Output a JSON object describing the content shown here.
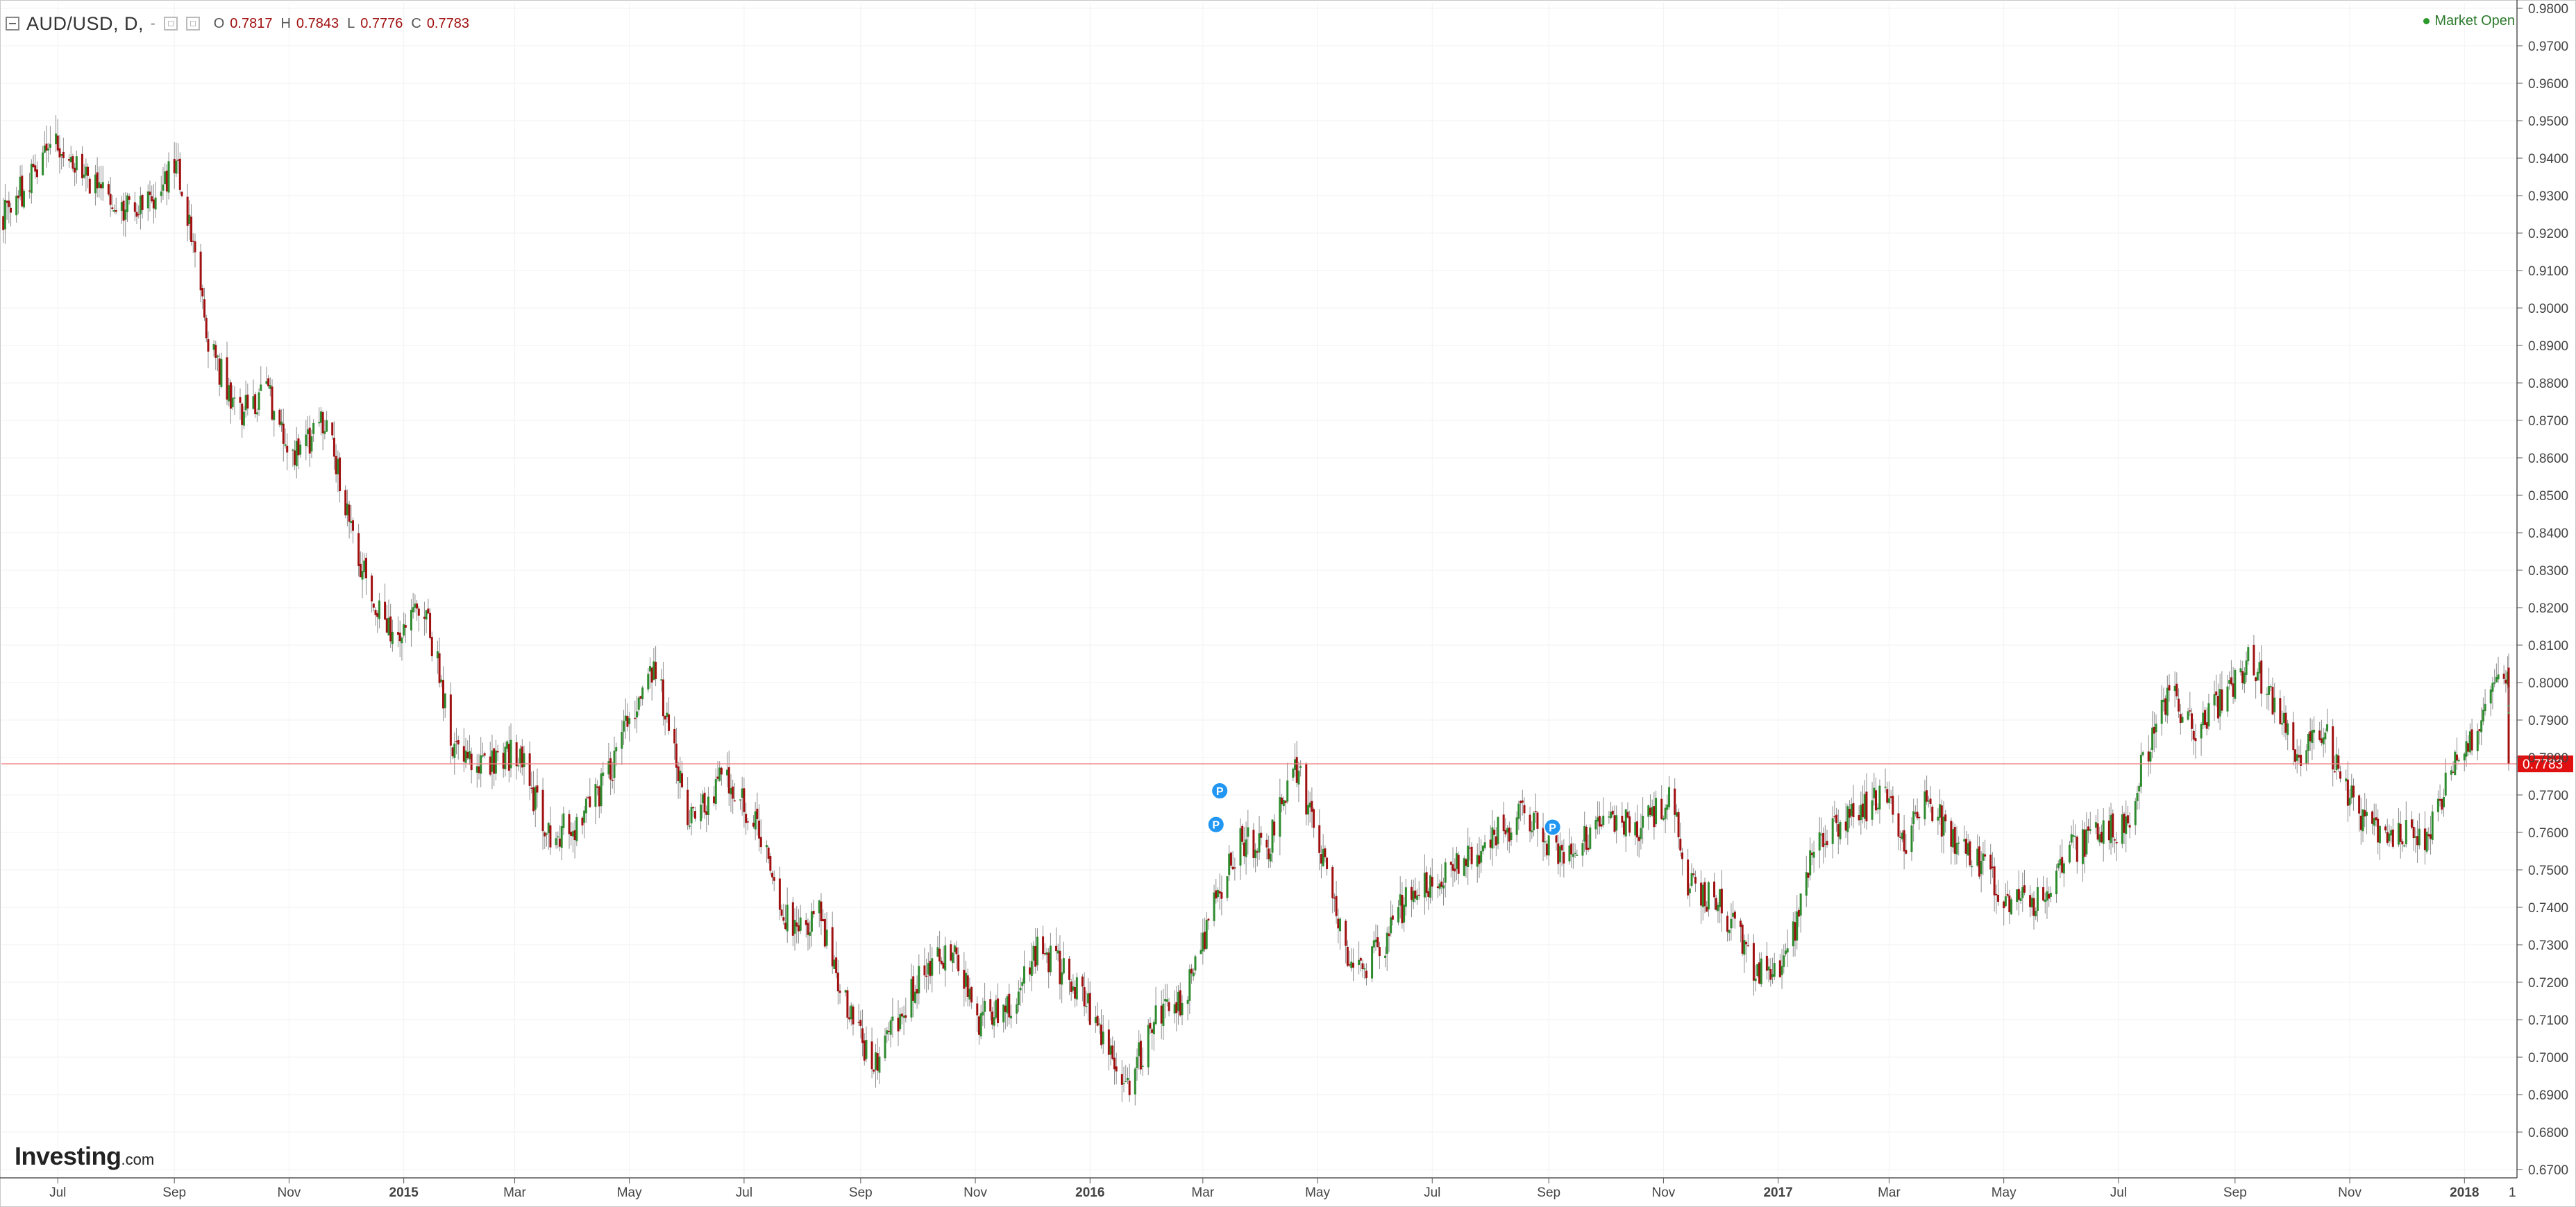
{
  "symbol_text": "AUD/USD, D,",
  "dash_text": "-",
  "ohlc": [
    {
      "key": "O",
      "value": "0.7817"
    },
    {
      "key": "H",
      "value": "0.7843"
    },
    {
      "key": "L",
      "value": "0.7776"
    },
    {
      "key": "C",
      "value": "0.7783"
    }
  ],
  "market_status": "Market Open",
  "brand": {
    "name": "Investing",
    "suffix": ".com"
  },
  "colors": {
    "up": "#2e8b2e",
    "down": "#a01010",
    "wick": "#8c8c8c",
    "last_price_line": "#f08080",
    "last_price_badge": "#e01010",
    "marker": "#2196f3"
  },
  "icons": [
    "collapse-icon",
    "settings-icon",
    "visibility-icon",
    "status-dot-icon"
  ],
  "chart_data": {
    "type": "candlestick",
    "instrument": "AUD/USD",
    "interval": "D",
    "ylim": [
      0.67,
      0.98
    ],
    "y_ticks": [
      "0.6700",
      "0.6800",
      "0.6900",
      "0.7000",
      "0.7100",
      "0.7200",
      "0.7300",
      "0.7400",
      "0.7500",
      "0.7600",
      "0.7700",
      "0.7800",
      "0.7900",
      "0.8000",
      "0.8100",
      "0.8200",
      "0.8300",
      "0.8400",
      "0.8500",
      "0.8600",
      "0.8700",
      "0.8800",
      "0.8900",
      "0.9000",
      "0.9100",
      "0.9200",
      "0.9300",
      "0.9400",
      "0.9500",
      "0.9600",
      "0.9700",
      "0.9800"
    ],
    "x_range": [
      "2014-06-01",
      "2018-01-26"
    ],
    "x_ticks": [
      {
        "label": "Jul",
        "date": "2014-07-01",
        "bold": false
      },
      {
        "label": "Sep",
        "date": "2014-09-01",
        "bold": false
      },
      {
        "label": "Nov",
        "date": "2014-11-01",
        "bold": false
      },
      {
        "label": "2015",
        "date": "2015-01-01",
        "bold": true
      },
      {
        "label": "Mar",
        "date": "2015-03-01",
        "bold": false
      },
      {
        "label": "May",
        "date": "2015-05-01",
        "bold": false
      },
      {
        "label": "Jul",
        "date": "2015-07-01",
        "bold": false
      },
      {
        "label": "Sep",
        "date": "2015-09-01",
        "bold": false
      },
      {
        "label": "Nov",
        "date": "2015-11-01",
        "bold": false
      },
      {
        "label": "2016",
        "date": "2016-01-01",
        "bold": true
      },
      {
        "label": "Mar",
        "date": "2016-03-01",
        "bold": false
      },
      {
        "label": "May",
        "date": "2016-05-01",
        "bold": false
      },
      {
        "label": "Jul",
        "date": "2016-07-01",
        "bold": false
      },
      {
        "label": "Sep",
        "date": "2016-09-01",
        "bold": false
      },
      {
        "label": "Nov",
        "date": "2016-11-01",
        "bold": false
      },
      {
        "label": "2017",
        "date": "2017-01-01",
        "bold": true
      },
      {
        "label": "Mar",
        "date": "2017-03-01",
        "bold": false
      },
      {
        "label": "May",
        "date": "2017-05-01",
        "bold": false
      },
      {
        "label": "Jul",
        "date": "2017-07-01",
        "bold": false
      },
      {
        "label": "Sep",
        "date": "2017-09-01",
        "bold": false
      },
      {
        "label": "Nov",
        "date": "2017-11-01",
        "bold": false
      },
      {
        "label": "2018",
        "date": "2018-01-01",
        "bold": true
      }
    ],
    "extra_axis_label": "1",
    "price_path": [
      {
        "date": "2014-06-01",
        "price": 0.924
      },
      {
        "date": "2014-06-25",
        "price": 0.94
      },
      {
        "date": "2014-07-01",
        "price": 0.945
      },
      {
        "date": "2014-07-15",
        "price": 0.935
      },
      {
        "date": "2014-08-05",
        "price": 0.927
      },
      {
        "date": "2014-08-20",
        "price": 0.93
      },
      {
        "date": "2014-09-03",
        "price": 0.938
      },
      {
        "date": "2014-09-20",
        "price": 0.89
      },
      {
        "date": "2014-10-05",
        "price": 0.872
      },
      {
        "date": "2014-10-20",
        "price": 0.878
      },
      {
        "date": "2014-11-05",
        "price": 0.86
      },
      {
        "date": "2014-11-20",
        "price": 0.87
      },
      {
        "date": "2014-12-08",
        "price": 0.833
      },
      {
        "date": "2014-12-25",
        "price": 0.813
      },
      {
        "date": "2015-01-12",
        "price": 0.821
      },
      {
        "date": "2015-01-28",
        "price": 0.782
      },
      {
        "date": "2015-02-15",
        "price": 0.777
      },
      {
        "date": "2015-03-03",
        "price": 0.782
      },
      {
        "date": "2015-03-18",
        "price": 0.759
      },
      {
        "date": "2015-04-03",
        "price": 0.762
      },
      {
        "date": "2015-04-20",
        "price": 0.775
      },
      {
        "date": "2015-05-05",
        "price": 0.795
      },
      {
        "date": "2015-05-15",
        "price": 0.805
      },
      {
        "date": "2015-06-02",
        "price": 0.762
      },
      {
        "date": "2015-06-20",
        "price": 0.775
      },
      {
        "date": "2015-07-05",
        "price": 0.765
      },
      {
        "date": "2015-07-25",
        "price": 0.735
      },
      {
        "date": "2015-08-10",
        "price": 0.738
      },
      {
        "date": "2015-08-25",
        "price": 0.714
      },
      {
        "date": "2015-09-07",
        "price": 0.697
      },
      {
        "date": "2015-09-22",
        "price": 0.712
      },
      {
        "date": "2015-10-08",
        "price": 0.725
      },
      {
        "date": "2015-10-20",
        "price": 0.727
      },
      {
        "date": "2015-11-03",
        "price": 0.71
      },
      {
        "date": "2015-11-20",
        "price": 0.715
      },
      {
        "date": "2015-12-05",
        "price": 0.73
      },
      {
        "date": "2015-12-20",
        "price": 0.721
      },
      {
        "date": "2016-01-05",
        "price": 0.71
      },
      {
        "date": "2016-01-20",
        "price": 0.692
      },
      {
        "date": "2016-02-05",
        "price": 0.71
      },
      {
        "date": "2016-02-20",
        "price": 0.715
      },
      {
        "date": "2016-03-05",
        "price": 0.738
      },
      {
        "date": "2016-03-20",
        "price": 0.757
      },
      {
        "date": "2016-04-05",
        "price": 0.757
      },
      {
        "date": "2016-04-20",
        "price": 0.777
      },
      {
        "date": "2016-05-03",
        "price": 0.755
      },
      {
        "date": "2016-05-20",
        "price": 0.72
      },
      {
        "date": "2016-06-05",
        "price": 0.73
      },
      {
        "date": "2016-06-20",
        "price": 0.745
      },
      {
        "date": "2016-07-05",
        "price": 0.748
      },
      {
        "date": "2016-07-20",
        "price": 0.752
      },
      {
        "date": "2016-08-05",
        "price": 0.76
      },
      {
        "date": "2016-08-20",
        "price": 0.765
      },
      {
        "date": "2016-09-03",
        "price": 0.755
      },
      {
        "date": "2016-09-20",
        "price": 0.758
      },
      {
        "date": "2016-10-05",
        "price": 0.763
      },
      {
        "date": "2016-10-20",
        "price": 0.762
      },
      {
        "date": "2016-11-05",
        "price": 0.768
      },
      {
        "date": "2016-11-15",
        "price": 0.745
      },
      {
        "date": "2016-12-01",
        "price": 0.742
      },
      {
        "date": "2016-12-20",
        "price": 0.722
      },
      {
        "date": "2017-01-03",
        "price": 0.722
      },
      {
        "date": "2017-01-20",
        "price": 0.755
      },
      {
        "date": "2017-02-05",
        "price": 0.762
      },
      {
        "date": "2017-02-25",
        "price": 0.77
      },
      {
        "date": "2017-03-10",
        "price": 0.757
      },
      {
        "date": "2017-03-20",
        "price": 0.77
      },
      {
        "date": "2017-04-05",
        "price": 0.758
      },
      {
        "date": "2017-04-20",
        "price": 0.75
      },
      {
        "date": "2017-05-05",
        "price": 0.742
      },
      {
        "date": "2017-05-20",
        "price": 0.742
      },
      {
        "date": "2017-06-05",
        "price": 0.755
      },
      {
        "date": "2017-06-20",
        "price": 0.76
      },
      {
        "date": "2017-07-05",
        "price": 0.762
      },
      {
        "date": "2017-07-15",
        "price": 0.78
      },
      {
        "date": "2017-07-28",
        "price": 0.797
      },
      {
        "date": "2017-08-10",
        "price": 0.788
      },
      {
        "date": "2017-08-25",
        "price": 0.795
      },
      {
        "date": "2017-09-08",
        "price": 0.806
      },
      {
        "date": "2017-09-20",
        "price": 0.796
      },
      {
        "date": "2017-10-05",
        "price": 0.781
      },
      {
        "date": "2017-10-20",
        "price": 0.785
      },
      {
        "date": "2017-11-03",
        "price": 0.767
      },
      {
        "date": "2017-11-20",
        "price": 0.758
      },
      {
        "date": "2017-12-05",
        "price": 0.76
      },
      {
        "date": "2017-12-12",
        "price": 0.758
      },
      {
        "date": "2017-12-25",
        "price": 0.776
      },
      {
        "date": "2018-01-10",
        "price": 0.79
      },
      {
        "date": "2018-01-19",
        "price": 0.804
      },
      {
        "date": "2018-01-26",
        "price": 0.8
      },
      {
        "date": "2018-02-05",
        "price": 0.783
      }
    ],
    "last_price": 0.7783,
    "last_price_label": "0.7783",
    "markers": [
      {
        "label": "P",
        "date": "2016-03-10",
        "price": 0.7711
      },
      {
        "label": "P",
        "date": "2016-03-08",
        "price": 0.7621
      },
      {
        "label": "P",
        "date": "2016-09-03",
        "price": 0.7614
      }
    ]
  }
}
